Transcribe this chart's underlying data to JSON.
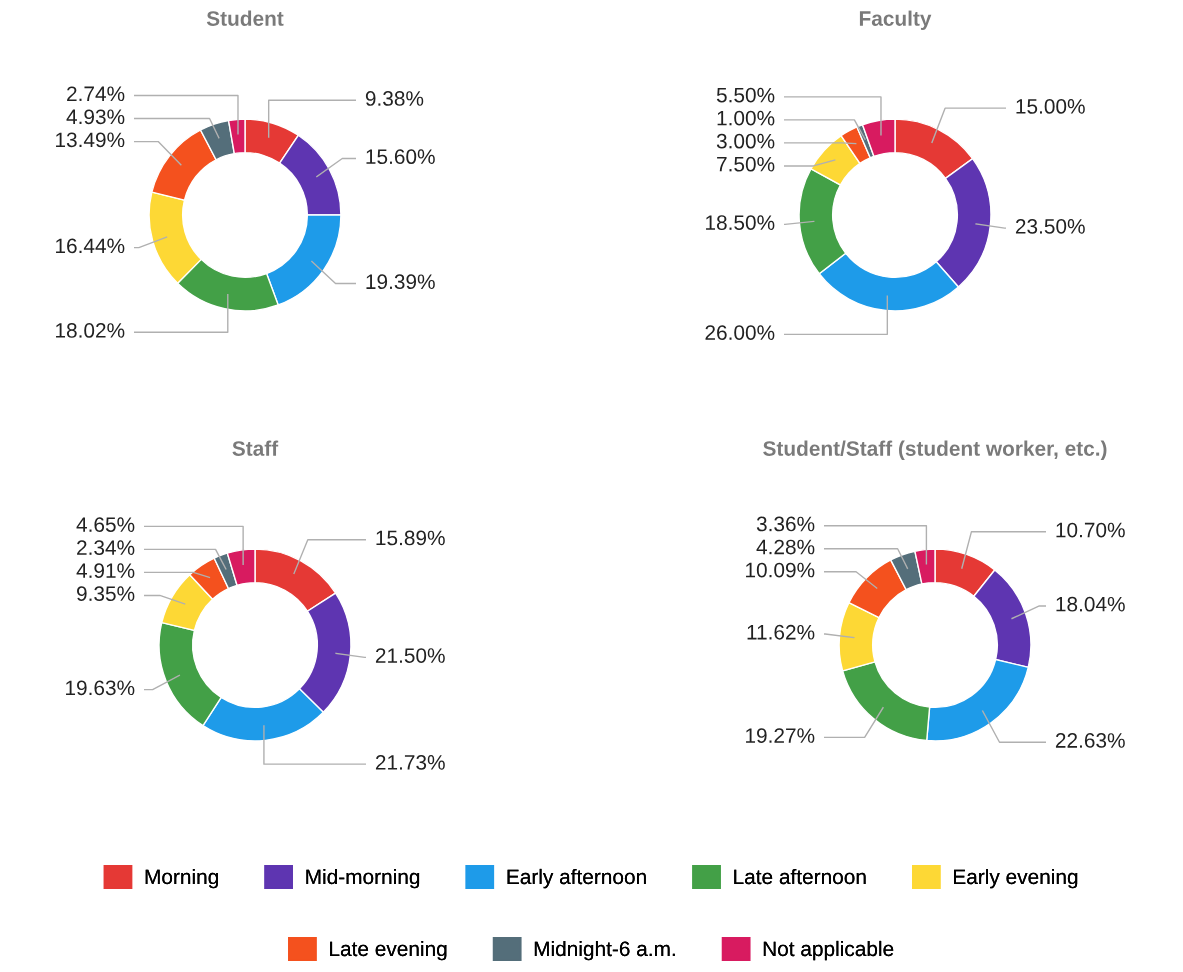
{
  "chart_data": [
    {
      "type": "donut",
      "title": "Student",
      "legend": "bottom",
      "categories": [
        "Morning",
        "Mid-morning",
        "Early afternoon",
        "Late afternoon",
        "Early evening",
        "Late evening",
        "Midnight-6 a.m.",
        "Not applicable"
      ],
      "colors": [
        "#e53935",
        "#5e35b1",
        "#1e9be9",
        "#43a047",
        "#fdd835",
        "#f4511e",
        "#546e7a",
        "#d81b60"
      ],
      "values": [
        9.38,
        15.6,
        19.39,
        18.02,
        16.44,
        13.49,
        4.93,
        2.74
      ],
      "value_labels": [
        "9.38%",
        "15.60%",
        "19.39%",
        "18.02%",
        "16.44%",
        "13.49%",
        "4.93%",
        "2.74%"
      ]
    },
    {
      "type": "donut",
      "title": "Faculty",
      "categories": [
        null,
        null,
        null,
        null,
        null,
        null,
        null,
        null
      ],
      "colors": [
        "#e53935",
        "#5e35b1",
        "#1e9be9",
        "#43a047",
        "#fdd835",
        "#f4511e",
        "#546e7a",
        "#d81b60"
      ],
      "values": [
        15.0,
        23.5,
        26.0,
        18.5,
        7.5,
        3.0,
        1.0,
        5.5
      ],
      "value_labels": [
        "15.00%",
        "23.50%",
        "26.00%",
        "18.50%",
        "7.50%",
        "3.00%",
        "1.00%",
        "5.50%"
      ]
    },
    {
      "type": "donut",
      "title": "Staff",
      "categories": [
        null,
        null,
        null,
        null,
        null,
        null,
        null,
        null
      ],
      "colors": [
        "#e53935",
        "#5e35b1",
        "#1e9be9",
        "#43a047",
        "#fdd835",
        "#f4511e",
        "#546e7a",
        "#d81b60"
      ],
      "values": [
        15.89,
        21.5,
        21.73,
        19.63,
        9.35,
        4.91,
        2.34,
        4.65
      ],
      "value_labels": [
        "15.89%",
        "21.50%",
        "21.73%",
        "19.63%",
        "9.35%",
        "4.91%",
        "2.34%",
        "4.65%"
      ]
    },
    {
      "type": "donut",
      "title": "Student/Staff (student worker, etc.)",
      "categories": [
        null,
        null,
        null,
        null,
        null,
        null,
        null,
        null
      ],
      "colors": [
        "#e53935",
        "#5e35b1",
        "#1e9be9",
        "#43a047",
        "#fdd835",
        "#f4511e",
        "#546e7a",
        "#d81b60"
      ],
      "values": [
        10.7,
        18.04,
        22.63,
        19.27,
        11.62,
        10.09,
        4.28,
        3.36
      ],
      "value_labels": [
        "10.70%",
        "18.04%",
        "22.63%",
        "19.27%",
        "11.62%",
        "10.09%",
        "4.28%",
        "3.36%"
      ]
    }
  ]
}
